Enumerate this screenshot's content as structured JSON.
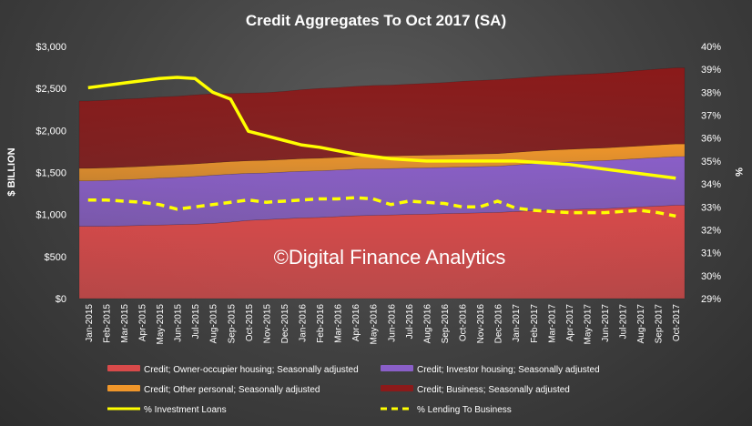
{
  "chart_data": {
    "type": "area",
    "title": "Credit Aggregates To Oct 2017 (SA)",
    "ylabel": "$ BILLION",
    "y2label": "%",
    "ylim": [
      0,
      3000
    ],
    "y2lim": [
      29,
      40
    ],
    "yticks": [
      "$0",
      "$500",
      "$1,000",
      "$1,500",
      "$2,000",
      "$2,500",
      "$3,000"
    ],
    "y2ticks": [
      "29%",
      "30%",
      "31%",
      "32%",
      "33%",
      "34%",
      "35%",
      "36%",
      "37%",
      "38%",
      "39%",
      "40%"
    ],
    "grid": false,
    "legend_position": "bottom",
    "watermark": "©Digital Finance Analytics",
    "categories": [
      "Jan-2015",
      "Feb-2015",
      "Mar-2015",
      "Apr-2015",
      "May-2015",
      "Jun-2015",
      "Jul-2015",
      "Aug-2015",
      "Sep-2015",
      "Oct-2015",
      "Nov-2015",
      "Dec-2015",
      "Jan-2016",
      "Feb-2016",
      "Mar-2016",
      "Apr-2016",
      "May-2016",
      "Jun-2016",
      "Jul-2016",
      "Aug-2016",
      "Sep-2016",
      "Oct-2016",
      "Nov-2016",
      "Dec-2016",
      "Jan-2017",
      "Feb-2017",
      "Mar-2017",
      "Apr-2017",
      "May-2017",
      "Jun-2017",
      "Jul-2017",
      "Aug-2017",
      "Sep-2017",
      "Oct-2017"
    ],
    "stacked_series": [
      {
        "name": "Credit; Owner-occupier housing; Seasonally adjusted",
        "color": "#d84a4a",
        "values": [
          860,
          860,
          865,
          870,
          875,
          880,
          885,
          895,
          910,
          930,
          940,
          950,
          960,
          965,
          975,
          985,
          990,
          995,
          1000,
          1005,
          1010,
          1015,
          1020,
          1025,
          1035,
          1045,
          1055,
          1060,
          1065,
          1070,
          1080,
          1090,
          1100,
          1110
        ]
      },
      {
        "name": "Credit; Investor housing; Seasonally adjusted",
        "color": "#8a5fc8",
        "values": [
          540,
          545,
          548,
          552,
          558,
          562,
          568,
          572,
          570,
          560,
          555,
          555,
          555,
          555,
          555,
          555,
          553,
          552,
          552,
          551,
          550,
          550,
          550,
          550,
          555,
          560,
          562,
          566,
          570,
          572,
          574,
          576,
          578,
          580
        ]
      },
      {
        "name": "Credit; Other personal; Seasonally adjusted",
        "color": "#f0962a",
        "values": [
          150,
          150,
          150,
          150,
          150,
          150,
          150,
          150,
          150,
          150,
          150,
          150,
          150,
          150,
          150,
          150,
          150,
          150,
          150,
          150,
          150,
          150,
          150,
          150,
          150,
          150,
          150,
          150,
          150,
          150,
          150,
          150,
          150,
          150
        ]
      },
      {
        "name": "Credit; Business; Seasonally adjusted",
        "color": "#8b1a1a",
        "values": [
          800,
          805,
          810,
          810,
          815,
          815,
          820,
          820,
          810,
          805,
          805,
          810,
          820,
          830,
          830,
          835,
          842,
          843,
          848,
          854,
          860,
          870,
          875,
          880,
          880,
          880,
          883,
          884,
          885,
          888,
          891,
          898,
          902,
          905
        ]
      }
    ],
    "line_series": [
      {
        "name": "% Investment Loans",
        "color": "#ffff00",
        "dash": "solid",
        "axis": "right",
        "values": [
          38.2,
          38.3,
          38.4,
          38.5,
          38.6,
          38.65,
          38.6,
          38.0,
          37.7,
          36.3,
          36.1,
          35.9,
          35.7,
          35.6,
          35.45,
          35.3,
          35.2,
          35.1,
          35.05,
          35.0,
          35.0,
          35.0,
          35.0,
          35.0,
          35.0,
          34.95,
          34.9,
          34.85,
          34.75,
          34.65,
          34.55,
          34.45,
          34.35,
          34.25
        ]
      },
      {
        "name": "% Lending To Business",
        "color": "#ffff00",
        "dash": "dashed",
        "axis": "right",
        "values": [
          33.3,
          33.3,
          33.25,
          33.2,
          33.1,
          32.9,
          33.0,
          33.1,
          33.2,
          33.3,
          33.2,
          33.25,
          33.3,
          33.35,
          33.35,
          33.4,
          33.35,
          33.1,
          33.25,
          33.2,
          33.15,
          33.0,
          33.0,
          33.25,
          32.95,
          32.85,
          32.8,
          32.75,
          32.75,
          32.75,
          32.8,
          32.85,
          32.75,
          32.6
        ]
      }
    ]
  }
}
